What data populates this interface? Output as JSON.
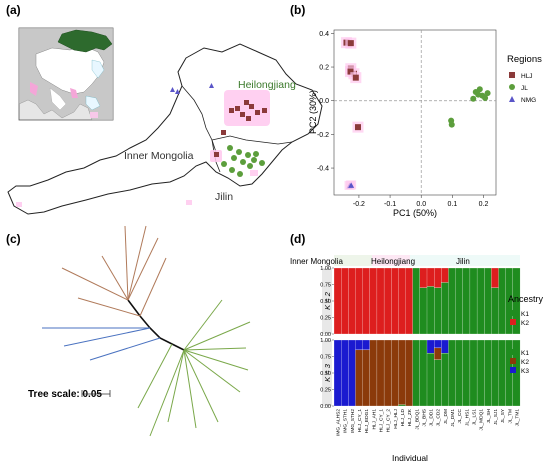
{
  "panels": {
    "a": {
      "label": "(a)",
      "regions": {
        "inner_mongolia": "Inner Mongolia",
        "heilongjiang": "Heilongjiang",
        "jilin": "Jilin"
      }
    },
    "b": {
      "label": "(b)",
      "legend_title": "Regions",
      "legend_items": [
        "HLJ",
        "JL",
        "NMG"
      ]
    },
    "c": {
      "label": "(c)",
      "tree_scale_label": "Tree scale: 0.05"
    },
    "d": {
      "label": "(d)",
      "groups": [
        "Inner Mongolia",
        "Heilongjiang",
        "Jilin"
      ],
      "k2_label": "K = 2",
      "k3_label": "K = 3",
      "legend_title": "Ancestry",
      "k2_legend": [
        "K1",
        "K2"
      ],
      "k3_legend": [
        "K1",
        "K2",
        "K3"
      ],
      "x_title": "Individual",
      "y_ticks": [
        "1.00",
        "0.75",
        "0.50",
        "0.25",
        "0.00"
      ]
    }
  },
  "colors": {
    "hlj": "#8b3a3a",
    "jl": "#5c9e3c",
    "nmg": "#5a55c8",
    "k1": "#1f8c1f",
    "k2_k2": "#dd1e1e",
    "k3_k2": "#8b3a0a",
    "k3_k3": "#1a1ad0",
    "tree_brown": "#b07a5a",
    "tree_blue": "#4a72c0",
    "tree_green": "#7aa84a",
    "map_fill": "#ffffff",
    "map_stroke": "#222222",
    "highlight": "#ffc8ee"
  },
  "chart_data": [
    {
      "type": "scatter",
      "panel": "b",
      "xlabel": "PC1 (50%)",
      "ylabel": "PC2 (30%)",
      "xlim": [
        -0.28,
        0.24
      ],
      "ylim": [
        -0.56,
        0.42
      ],
      "x_ticks": [
        "-0.2",
        "-0.1",
        "0.0",
        "0.1",
        "0.2"
      ],
      "y_ticks": [
        "0.4",
        "0.2",
        "0.0",
        "-0.2",
        "-0.4"
      ],
      "legend_title": "Regions",
      "series": [
        {
          "name": "HLJ",
          "marker": "square",
          "points": [
            [
              -0.24,
              0.345
            ],
            [
              -0.226,
              0.342
            ],
            [
              -0.226,
              0.19
            ],
            [
              -0.216,
              0.16
            ],
            [
              -0.227,
              0.173
            ],
            [
              -0.21,
              0.137
            ],
            [
              -0.203,
              -0.157
            ]
          ]
        },
        {
          "name": "JL",
          "marker": "circle",
          "points": [
            [
              0.167,
              0.012
            ],
            [
              0.183,
              0.036
            ],
            [
              0.196,
              0.03
            ],
            [
              0.188,
              0.068
            ],
            [
              0.205,
              0.016
            ],
            [
              0.213,
              0.045
            ],
            [
              0.096,
              -0.118
            ],
            [
              0.098,
              -0.142
            ],
            [
              0.175,
              0.052
            ]
          ]
        },
        {
          "name": "NMG",
          "marker": "triangle",
          "points": [
            [
              -0.23,
              -0.506
            ],
            [
              -0.225,
              -0.503
            ]
          ]
        }
      ]
    },
    {
      "type": "bar",
      "panel": "d",
      "stacked": true,
      "xlabel": "Individual",
      "categories": [
        "IMG_ALHS2",
        "IMG_STH1",
        "IMG_STH2",
        "HLJ_CY_1",
        "HLJ_EDG1",
        "HLJ_AH1",
        "HLJ_CY_1",
        "HLJ_CY_2",
        "HLJ_HLJ",
        "HLJ_LD",
        "HLJ_ZK",
        "JL_BDQ1",
        "JL_BHS",
        "JL_DD1",
        "JL_CD2",
        "JL_DM",
        "JL_DM1",
        "JL_CC",
        "JL_HS1",
        "JL_LS1",
        "JL_MDQ1",
        "JL_SH",
        "JL_SJ1",
        "JL_SY",
        "JL_TM",
        "JL_TM1"
      ],
      "k2": {
        "K1": [
          0,
          0,
          0,
          0,
          0,
          0,
          0,
          0,
          0,
          0,
          0,
          1,
          0.7,
          0.72,
          0.7,
          0.78,
          1,
          1,
          1,
          1,
          1,
          1,
          0.7,
          1,
          1,
          1
        ],
        "K2": [
          1,
          1,
          1,
          1,
          1,
          1,
          1,
          1,
          1,
          1,
          1,
          0,
          0.3,
          0.28,
          0.3,
          0.22,
          0,
          0,
          0,
          0,
          0,
          0,
          0.3,
          0,
          0,
          0
        ]
      },
      "k3": {
        "K1": [
          0,
          0,
          0,
          0,
          0,
          0,
          0,
          0,
          0,
          0.02,
          0,
          1,
          1,
          0.8,
          0.7,
          0.8,
          1,
          1,
          1,
          1,
          1,
          1,
          1,
          1,
          1,
          1
        ],
        "K2": [
          0,
          0,
          0,
          0.85,
          0.85,
          1,
          1,
          1,
          1,
          0.98,
          1,
          0,
          0,
          0,
          0.18,
          0,
          0,
          0,
          0,
          0,
          0,
          0,
          0,
          0,
          0,
          0
        ],
        "K3": [
          1,
          1,
          1,
          0.15,
          0.15,
          0,
          0,
          0,
          0,
          0,
          0,
          0,
          0,
          0.2,
          0.12,
          0.2,
          0,
          0,
          0,
          0,
          0,
          0,
          0,
          0,
          0,
          0
        ]
      }
    }
  ]
}
